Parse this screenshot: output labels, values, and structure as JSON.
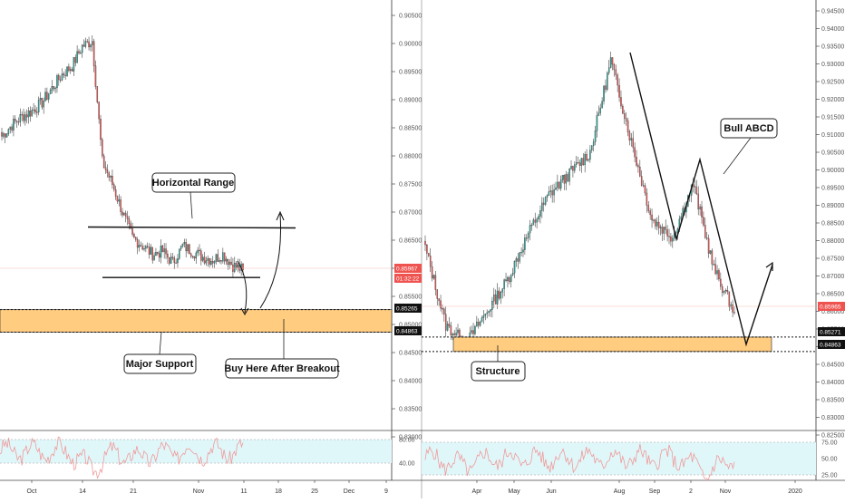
{
  "colors": {
    "up": "#26a69a",
    "down": "#ef5350",
    "support_zone": "#ffcc80",
    "rsi_band": "#e0f7fa",
    "rsi_line": "#ef9a9a",
    "price_badge": "#ef5350",
    "dark_badge": "#111111"
  },
  "left_panel": {
    "price_ticks": [
      "0.90500",
      "0.90000",
      "0.89500",
      "0.89000",
      "0.88500",
      "0.88000",
      "0.87500",
      "0.87000",
      "0.86500",
      "0.86000",
      "0.85500",
      "0.85000",
      "0.84500",
      "0.84000",
      "0.83500",
      "0.83000"
    ],
    "badges": {
      "last_price": "0.85967",
      "countdown": "01:32:22",
      "zone_top": "0.85265",
      "zone_bottom": "0.84863"
    },
    "x_ticks": [
      "Oct",
      "14",
      "21",
      "Nov",
      "11",
      "18",
      "25",
      "Dec",
      "9"
    ],
    "rsi_ticks": [
      "80.00",
      "40.00"
    ],
    "callouts": {
      "range": "Horizontal Range",
      "support": "Major Support",
      "buy": "Buy Here After Breakout"
    }
  },
  "right_panel": {
    "price_ticks": [
      "0.94500",
      "0.94000",
      "0.93500",
      "0.93000",
      "0.92500",
      "0.92000",
      "0.91500",
      "0.91000",
      "0.90500",
      "0.90000",
      "0.89500",
      "0.89000",
      "0.88500",
      "0.88000",
      "0.87500",
      "0.87000",
      "0.86500",
      "0.86000",
      "0.85500",
      "0.85000",
      "0.84500",
      "0.84000",
      "0.83500",
      "0.83000",
      "0.82500"
    ],
    "badges": {
      "last_price": "0.85965",
      "zone_top": "0.85271",
      "zone_bottom": "0.84863"
    },
    "x_ticks": [
      "Apr",
      "May",
      "Jun",
      "Aug",
      "Sep",
      "2",
      "Nov",
      "2020"
    ],
    "rsi_ticks": [
      "75.00",
      "50.00",
      "25.00"
    ],
    "callouts": {
      "abcd": "Bull ABCD",
      "structure": "Structure"
    }
  },
  "chart_data": [
    {
      "type": "candlestick",
      "title": "",
      "ylim": [
        0.8275,
        0.9075
      ],
      "close_path": [
        [
          "Oct",
          0.8835
        ],
        [
          "",
          "0.8855"
        ],
        [
          "",
          "0.8870"
        ],
        [
          "",
          "0.8880"
        ],
        [
          "",
          "0.8895"
        ],
        [
          "",
          "0.8920"
        ],
        [
          "",
          "0.8945"
        ],
        [
          "",
          "0.8960"
        ],
        [
          "",
          "0.8995"
        ],
        [
          "",
          "0.9005"
        ],
        [
          "14",
          0.879
        ],
        [
          "",
          "0.8750"
        ],
        [
          "",
          "0.8700"
        ],
        [
          "",
          "0.8655"
        ],
        [
          "",
          "0.8640"
        ],
        [
          "21",
          0.8625
        ],
        [
          "",
          "0.8630"
        ],
        [
          "",
          "0.8610"
        ],
        [
          "",
          "0.8640"
        ],
        [
          "",
          "0.8630"
        ],
        [
          "Nov",
          0.862
        ],
        [
          "",
          "0.8615"
        ],
        [
          "",
          "0.8625"
        ],
        [
          "",
          "0.8605"
        ],
        [
          "11",
          0.8597
        ]
      ],
      "range_top": 0.8675,
      "range_bottom": 0.859,
      "support_zone": [
        0.84863,
        0.85265
      ],
      "rsi_band": [
        40,
        80
      ]
    },
    {
      "type": "candlestick",
      "title": "",
      "ylim": [
        0.8225,
        0.9475
      ],
      "close_path": [
        [
          "",
          0.878
        ],
        [
          "Apr",
          0.856
        ],
        [
          "",
          "0.8510"
        ],
        [
          "May",
          0.86
        ],
        [
          "",
          "0.8690"
        ],
        [
          "Jun",
          0.882
        ],
        [
          "",
          "0.8930"
        ],
        [
          "",
          "0.8990"
        ],
        [
          "",
          "0.9050"
        ],
        [
          "Aug",
          0.931
        ],
        [
          "",
          "0.9080"
        ],
        [
          "Sep",
          0.886
        ],
        [
          "",
          "0.8810"
        ],
        [
          "2",
          0.896
        ],
        [
          "",
          "0.8720"
        ],
        [
          "Nov",
          0.8597
        ]
      ],
      "abcd_points": [
        0.9315,
        0.881,
        0.9015,
        0.849
      ],
      "support_zone": [
        0.84863,
        0.85271
      ],
      "rsi_band": [
        25,
        75
      ]
    }
  ]
}
